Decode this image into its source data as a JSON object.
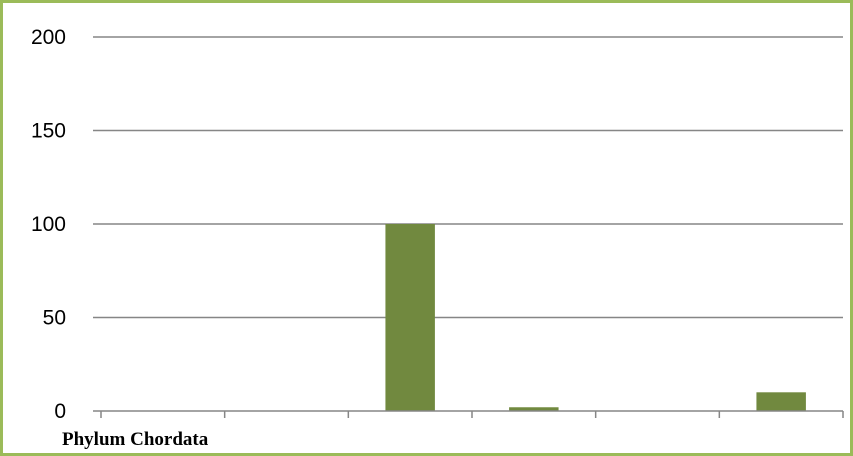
{
  "chart_data": {
    "type": "bar",
    "title": "",
    "xlabel": "",
    "ylabel": "",
    "categories": [
      "Phylum Chordata",
      "",
      "",
      "",
      "",
      ""
    ],
    "values": [
      0,
      0,
      100,
      2,
      0,
      10
    ],
    "ylim": [
      0,
      200
    ],
    "yticks": [
      0,
      50,
      100,
      150,
      200
    ],
    "grid": true,
    "legend": "none",
    "bar_color": "#71893f",
    "frame_color": "#9bbb59",
    "gridline_color": "#868686"
  }
}
